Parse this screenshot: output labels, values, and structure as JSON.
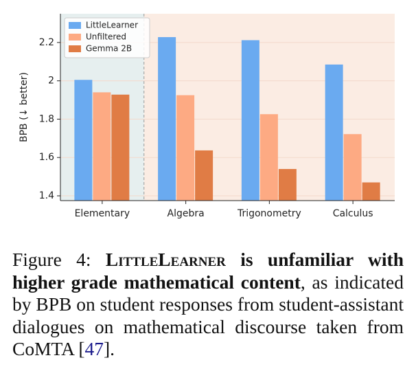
{
  "chart_data": {
    "type": "bar",
    "ylabel": "BPB (↓ better)",
    "categories": [
      "Elementary",
      "Algebra",
      "Trigonometry",
      "Calculus"
    ],
    "series": [
      {
        "name": "LittleLearner",
        "color": "#6aaaf0",
        "values": [
          2.005,
          2.228,
          2.212,
          2.085
        ]
      },
      {
        "name": "Unfiltered",
        "color": "#fdaa83",
        "values": [
          1.94,
          1.925,
          1.826,
          1.722
        ]
      },
      {
        "name": "Gemma 2B",
        "color": "#e07c45",
        "values": [
          1.928,
          1.637,
          1.54,
          1.47
        ]
      }
    ],
    "ylim": [
      1.375,
      2.35
    ],
    "yticks": [
      1.4,
      1.6,
      1.8,
      2.0,
      2.2
    ],
    "grid": true,
    "legend": "upper left"
  },
  "caption": {
    "label": "Figure 4:",
    "name": "LittleLearner",
    "bold": "is unfamiliar with higher grade mathematical content",
    "text": ", as indicated by BPB on student responses from student-assistant dialogues on mathematical discourse taken from CoMTA [",
    "ref": "47",
    "end": "]."
  }
}
